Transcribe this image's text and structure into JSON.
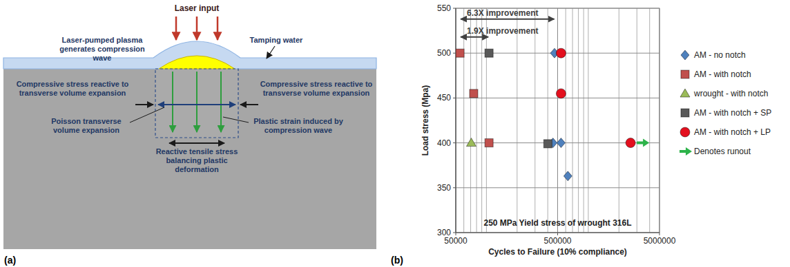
{
  "panels": [
    "(a)",
    "(b)"
  ],
  "diagram": {
    "laser_input": "Laser input",
    "plasma": "Laser-pumped plasma generates compression wave",
    "tamping_water": "Tamping water",
    "compressive_left": "Compressive stress reactive to transverse volume expansion",
    "compressive_right": "Compressive stress reactive to transverse volume expansion",
    "poisson": "Poisson transverse volume expansion",
    "tensile": "Reactive tensile stress balancing plastic deformation",
    "plastic_strain": "Plastic strain induced by compression wave"
  },
  "chart_data": {
    "type": "scatter",
    "x_label": "Cycles to Failure (10% compliance)",
    "y_label": "Load stress (Mpa)",
    "log": "x",
    "xlim": [
      50000,
      5000000
    ],
    "xticks": [
      50000,
      500000,
      5000000
    ],
    "ylim": [
      300,
      550
    ],
    "yticks": [
      300,
      350,
      400,
      450,
      500,
      550
    ],
    "grid": true,
    "legend": "right",
    "series": [
      {
        "name": "AM - no notch",
        "color": "#4f81bd",
        "marker": "diamond",
        "x": [
          466000,
          450000,
          540000,
          630000
        ],
        "values": [
          500,
          400,
          400,
          363
        ]
      },
      {
        "name": "AM - with notch",
        "color": "#c0504d",
        "marker": "square",
        "x": [
          55000,
          75000,
          106000
        ],
        "values": [
          500,
          455,
          400
        ]
      },
      {
        "name": "wrought - with notch",
        "color": "#9bbb59",
        "marker": "triangle",
        "x": [
          71000
        ],
        "values": [
          400
        ]
      },
      {
        "name": "AM - with notch + SP",
        "color": "#595959",
        "marker": "square",
        "x": [
          106000,
          401000
        ],
        "values": [
          500,
          399
        ]
      },
      {
        "name": "AM - with notch + LP",
        "color": "#e3101e",
        "marker": "circle",
        "x": [
          540000,
          540000,
          2600000
        ],
        "values": [
          500,
          455,
          400
        ]
      },
      {
        "name": "Denotes runout",
        "color": "#2db34a",
        "marker": "arrow",
        "x": [
          2600000
        ],
        "values": [
          400
        ]
      }
    ],
    "annotations": [
      {
        "text": "6.3X improvement",
        "x": [
          55000,
          470000
        ],
        "y": 538
      },
      {
        "text": "1.9X improvement",
        "x": [
          55000,
          106000
        ],
        "y": 518
      },
      {
        "text": "250 MPa Yield stress of wrought 316L"
      }
    ]
  }
}
